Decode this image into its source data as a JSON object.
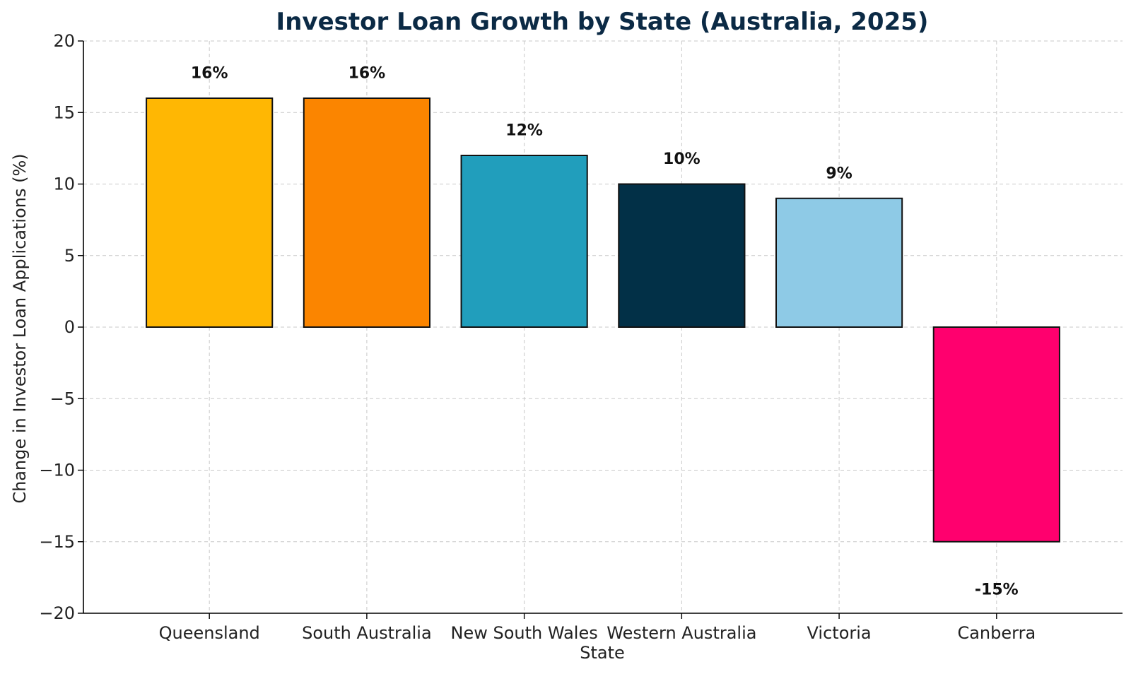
{
  "chart_data": {
    "type": "bar",
    "title": "Investor Loan Growth by State (Australia, 2025)",
    "xlabel": "State",
    "ylabel": "Change in Investor Loan Applications (%)",
    "categories": [
      "Queensland",
      "South Australia",
      "New South Wales",
      "Western Australia",
      "Victoria",
      "Canberra"
    ],
    "values": [
      16,
      16,
      12,
      10,
      9,
      -15
    ],
    "data_labels": [
      "16%",
      "16%",
      "12%",
      "10%",
      "9%",
      "-15%"
    ],
    "colors": [
      "#FFB703",
      "#FB8500",
      "#219EBC",
      "#023047",
      "#8ECAE6",
      "#FF006E"
    ],
    "ylim": [
      -20,
      20
    ],
    "yticks": [
      20,
      15,
      10,
      5,
      0,
      -5,
      -10,
      -15,
      -20
    ],
    "ytick_labels": [
      "20",
      "15",
      "10",
      "5",
      "0",
      "−5",
      "−10",
      "−15",
      "−20"
    ],
    "grid": true,
    "legend": "none",
    "title_color": "#0B2A45"
  }
}
